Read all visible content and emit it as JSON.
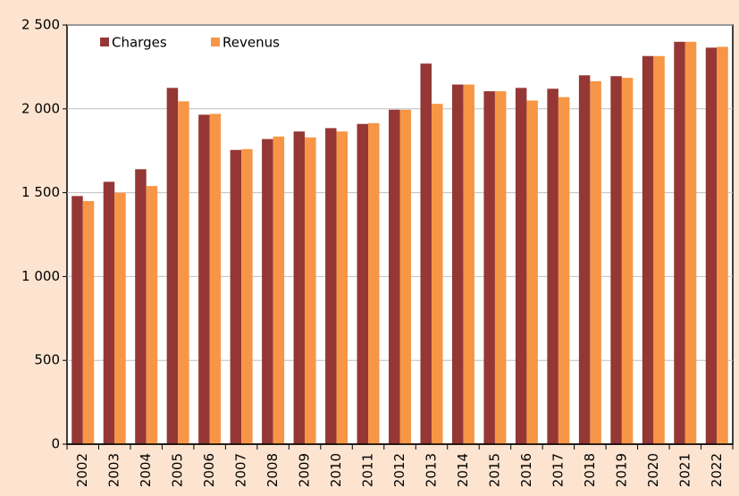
{
  "chart_data": {
    "type": "bar",
    "categories": [
      "2002",
      "2003",
      "2004",
      "2005",
      "2006",
      "2007",
      "2008",
      "2009",
      "2010",
      "2011",
      "2012",
      "2013",
      "2014",
      "2015",
      "2016",
      "2017",
      "2018",
      "2019",
      "2020",
      "2021",
      "2022"
    ],
    "series": [
      {
        "name": "Charges",
        "color": "#953735",
        "values": [
          1480,
          1565,
          1640,
          2125,
          1965,
          1755,
          1820,
          1865,
          1885,
          1910,
          1995,
          2270,
          2145,
          2105,
          2125,
          2120,
          2200,
          2195,
          2315,
          2400,
          2365
        ]
      },
      {
        "name": "Revenus",
        "color": "#f79646",
        "values": [
          1450,
          1500,
          1540,
          2045,
          1970,
          1760,
          1835,
          1830,
          1865,
          1915,
          1995,
          2030,
          2145,
          2105,
          2050,
          2070,
          2165,
          2185,
          2315,
          2400,
          2370
        ]
      }
    ],
    "ylim": [
      0,
      2500
    ],
    "yticks": [
      0,
      500,
      {
        "value": 1000,
        "label": "1 000"
      },
      {
        "value": 1500,
        "label": "1 500"
      },
      {
        "value": 2000,
        "label": "2 000"
      },
      {
        "value": 2500,
        "label": "2 500"
      }
    ],
    "grid": true,
    "legend": "top-left"
  }
}
